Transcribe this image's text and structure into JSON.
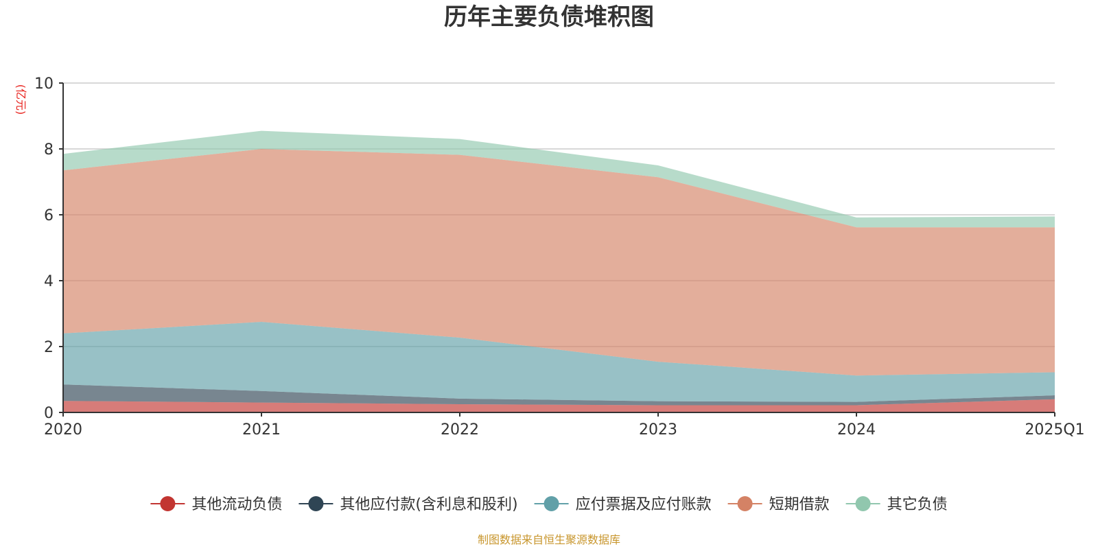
{
  "chart_data": {
    "type": "area",
    "title": "历年主要负债堆积图",
    "unit_label": "(亿元)",
    "source_text": "制图数据来自恒生聚源数据库",
    "categories": [
      "2020",
      "2021",
      "2022",
      "2023",
      "2024",
      "2025Q1"
    ],
    "ylim": [
      0,
      10
    ],
    "yticks": [
      "0",
      "2",
      "4",
      "6",
      "8",
      "10"
    ],
    "stacked": true,
    "grid": true,
    "legend_position": "bottom",
    "series": [
      {
        "name": "其他流动负债",
        "color": "#c23531",
        "values": [
          0.35,
          0.3,
          0.25,
          0.22,
          0.22,
          0.4
        ]
      },
      {
        "name": "其他应付款(含利息和股利)",
        "color": "#2f4554",
        "values": [
          0.5,
          0.35,
          0.17,
          0.12,
          0.1,
          0.12
        ]
      },
      {
        "name": "应付票据及应付账款",
        "color": "#61a0a8",
        "values": [
          1.55,
          2.1,
          1.85,
          1.2,
          0.8,
          0.7
        ]
      },
      {
        "name": "短期借款",
        "color": "#d48265",
        "values": [
          4.95,
          5.25,
          5.55,
          5.6,
          4.5,
          4.4
        ]
      },
      {
        "name": "其它负债",
        "color": "#91c7ae",
        "values": [
          0.5,
          0.55,
          0.48,
          0.36,
          0.3,
          0.33
        ]
      }
    ]
  }
}
